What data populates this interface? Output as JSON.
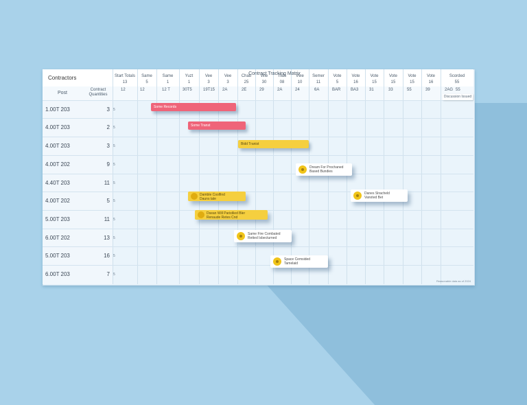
{
  "title": "Contract Tracking Matrix",
  "corner": {
    "label": "Contractors",
    "col_project": "Post",
    "col_count": "Contract Quantities"
  },
  "columns": [
    {
      "h": "Start Totals",
      "s": "13"
    },
    {
      "h": "Same",
      "s": "5"
    },
    {
      "h": "Same",
      "s": "1"
    },
    {
      "h": "Yuzt",
      "s": "1"
    },
    {
      "h": "Vee",
      "s": "3"
    },
    {
      "h": "Vee",
      "s": "3"
    },
    {
      "h": "Chab",
      "s": "25"
    },
    {
      "h": "Wie",
      "s": "30"
    },
    {
      "h": "Tilds",
      "s": "08"
    },
    {
      "h": "Vwe",
      "s": "10"
    },
    {
      "h": "Semer",
      "s": "11"
    },
    {
      "h": "Vote",
      "s": "5"
    },
    {
      "h": "Vote",
      "s": "16"
    },
    {
      "h": "Vote",
      "s": "15"
    },
    {
      "h": "Vote",
      "s": "15"
    },
    {
      "h": "Vote",
      "s": "15"
    },
    {
      "h": "Vote",
      "s": "16"
    },
    {
      "h": "Scorded",
      "s": "55"
    }
  ],
  "sub_row": [
    "12",
    "12",
    "12 T",
    "30T5",
    "19T15",
    "2A",
    "2E",
    "29",
    "2A",
    "24",
    "6A",
    "BAR",
    "BA3",
    "31",
    "33",
    "55",
    "39",
    "2AG",
    "55"
  ],
  "right_header": "Discussion Issued",
  "rows": [
    {
      "label": "1.00T 203",
      "count": "3"
    },
    {
      "label": "4.00T 203",
      "count": "2"
    },
    {
      "label": "4.00T 203",
      "count": "3"
    },
    {
      "label": "4.00T 202",
      "count": "9"
    },
    {
      "label": "4.40T 203",
      "count": "11"
    },
    {
      "label": "4.00T 202",
      "count": "5"
    },
    {
      "label": "5.00T 203",
      "count": "11"
    },
    {
      "label": "6.00T 202",
      "count": "13"
    },
    {
      "label": "5.00T 203",
      "count": "16"
    },
    {
      "label": "6.00T 203",
      "count": "7"
    }
  ],
  "row_tick": "5",
  "bars": [
    {
      "label": "Some Records",
      "color": "#ef6479"
    },
    {
      "label": "Some Transt",
      "color": "#ef6479"
    },
    {
      "label": "Bidd Tranist",
      "color": "#f5cf3f"
    }
  ],
  "cards": [
    {
      "l1": "Dream For Prochaned",
      "l2": "Based Bundies"
    },
    {
      "l1": "Danes Stracheld",
      "l2": "Vanoted Bet"
    },
    {
      "l1": "Same Fire Combated",
      "l2": "Retted Isbecturned"
    },
    {
      "l1": "Space Cemsided",
      "l2": "Tamelaid"
    }
  ],
  "ycards": [
    {
      "l1": "Damble Coolfind",
      "l2": "Dauns tale"
    },
    {
      "l1": "Dsean Will Paristlied Bler",
      "l2": "Renaude Retes Cnd"
    }
  ],
  "footer": "Reasonable data as of 2024"
}
